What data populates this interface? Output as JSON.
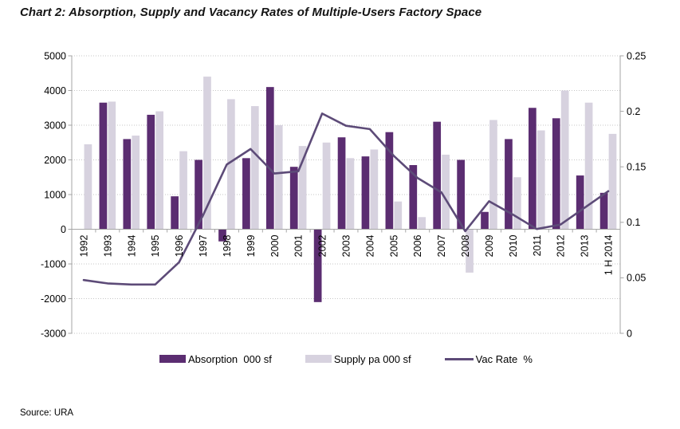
{
  "page": {
    "source": "Source: URA"
  },
  "axes": {
    "left_ticks": [
      "5000",
      "4000",
      "3000",
      "2000",
      "1000",
      "0",
      "-1000",
      "-2000",
      "-3000"
    ],
    "right_ticks": [
      "0.25",
      "0.2",
      "0.15",
      "0.1",
      "0.05",
      "0"
    ]
  },
  "colors": {
    "absorption": "#5B2D71",
    "supply": "#D7D2DF",
    "vac_rate": "#5D4B78",
    "gridline": "#C6C6C6",
    "axis": "#A6A6A6",
    "text": "#000000"
  },
  "chart_data": {
    "type": "bar+line",
    "title": "Chart 2: Absorption, Supply and Vacancy Rates of Multiple-Users Factory Space",
    "categories": [
      "1992",
      "1993",
      "1994",
      "1995",
      "1996",
      "1997",
      "1998",
      "1999",
      "2000",
      "2001",
      "2002",
      "2003",
      "2004",
      "2005",
      "2006",
      "2007",
      "2008",
      "2009",
      "2010",
      "2011",
      "2012",
      "2013",
      "1 H 2014"
    ],
    "left_axis": {
      "min": -3000,
      "max": 5000,
      "step": 1000
    },
    "right_axis": {
      "min": 0,
      "max": 0.25,
      "step": 0.05
    },
    "grid": "dotted horizontal",
    "legend_position": "bottom",
    "series": [
      {
        "name": "Absorption",
        "legend_label": "Absorption  000 sf",
        "type": "bar",
        "axis": "left",
        "values": [
          null,
          3650,
          2600,
          3300,
          950,
          2000,
          -350,
          2050,
          4100,
          1800,
          -2100,
          2650,
          2100,
          2800,
          1850,
          3100,
          2000,
          500,
          2600,
          3500,
          3200,
          1550,
          1050
        ]
      },
      {
        "name": "Supply pa",
        "legend_label": "Supply pa 000 sf",
        "type": "bar",
        "axis": "left",
        "values": [
          2450,
          3680,
          2700,
          3400,
          2250,
          4400,
          3750,
          3550,
          3000,
          2400,
          2500,
          2050,
          2300,
          800,
          350,
          2150,
          -1250,
          3150,
          1500,
          2850,
          4000,
          3650,
          2750
        ]
      },
      {
        "name": "Vac Rate",
        "legend_label": "Vac Rate  %",
        "type": "line",
        "axis": "right",
        "values": [
          0.048,
          0.045,
          0.044,
          0.044,
          0.064,
          0.106,
          0.152,
          0.166,
          0.144,
          0.146,
          0.198,
          0.187,
          0.184,
          0.16,
          0.14,
          0.127,
          0.092,
          0.119,
          0.107,
          0.094,
          0.098,
          0.113,
          0.128
        ]
      }
    ]
  }
}
